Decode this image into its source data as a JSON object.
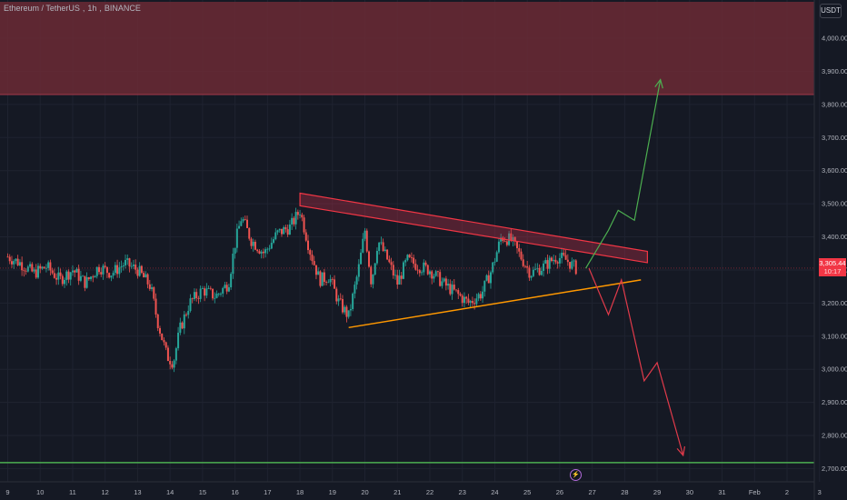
{
  "header": {
    "symbol": "Ethereum / TetherUS",
    "interval": "1h",
    "exchange": "BINANCE",
    "currency": "USDT"
  },
  "price_tag": {
    "price": "3,305.44",
    "countdown": "10:17"
  },
  "colors": {
    "background": "#151924",
    "bull": "#26a69a",
    "bear": "#ef5350",
    "resistance_zone": "#6b2a35",
    "triangle_top": "#f23645",
    "triangle_bottom": "#ff9800",
    "support_line": "#4caf50",
    "bull_arrow": "#4caf50",
    "bear_arrow": "#e03a4a",
    "grid": "#1f2330"
  },
  "chart_data": {
    "type": "candlestick",
    "title": "",
    "ylim": [
      2660,
      4110
    ],
    "x_ticks": [
      "9",
      "10",
      "11",
      "12",
      "13",
      "14",
      "15",
      "16",
      "17",
      "18",
      "19",
      "20",
      "21",
      "22",
      "23",
      "24",
      "25",
      "26",
      "27",
      "28",
      "29",
      "30",
      "31",
      "Feb",
      "2",
      "3"
    ],
    "y_ticks": [
      "4,000.00",
      "3,900.00",
      "3,800.00",
      "3,700.00",
      "3,600.00",
      "3,500.00",
      "3,400.00",
      "3,300.00",
      "3,200.00",
      "3,100.00",
      "3,000.00",
      "2,900.00",
      "2,800.00",
      "2,700.00"
    ],
    "current_price": 3305.44,
    "price_path": [
      [
        9.0,
        3340
      ],
      [
        9.4,
        3320
      ],
      [
        9.8,
        3290
      ],
      [
        10.2,
        3310
      ],
      [
        10.6,
        3270
      ],
      [
        11.0,
        3300
      ],
      [
        11.4,
        3260
      ],
      [
        11.8,
        3310
      ],
      [
        12.2,
        3290
      ],
      [
        12.6,
        3320
      ],
      [
        13.0,
        3300
      ],
      [
        13.4,
        3250
      ],
      [
        13.6,
        3150
      ],
      [
        13.9,
        3040
      ],
      [
        14.1,
        3020
      ],
      [
        14.3,
        3120
      ],
      [
        14.6,
        3200
      ],
      [
        15.0,
        3240
      ],
      [
        15.4,
        3220
      ],
      [
        15.8,
        3260
      ],
      [
        16.0,
        3380
      ],
      [
        16.2,
        3460
      ],
      [
        16.5,
        3390
      ],
      [
        16.9,
        3350
      ],
      [
        17.3,
        3410
      ],
      [
        17.7,
        3430
      ],
      [
        18.0,
        3480
      ],
      [
        18.3,
        3360
      ],
      [
        18.6,
        3270
      ],
      [
        18.9,
        3280
      ],
      [
        19.2,
        3200
      ],
      [
        19.5,
        3160
      ],
      [
        19.8,
        3300
      ],
      [
        20.0,
        3420
      ],
      [
        20.2,
        3260
      ],
      [
        20.4,
        3390
      ],
      [
        20.7,
        3330
      ],
      [
        21.0,
        3260
      ],
      [
        21.3,
        3330
      ],
      [
        21.7,
        3310
      ],
      [
        22.0,
        3300
      ],
      [
        22.4,
        3260
      ],
      [
        22.8,
        3230
      ],
      [
        23.2,
        3200
      ],
      [
        23.6,
        3230
      ],
      [
        23.9,
        3300
      ],
      [
        24.2,
        3400
      ],
      [
        24.5,
        3390
      ],
      [
        24.8,
        3340
      ],
      [
        25.1,
        3290
      ],
      [
        25.5,
        3310
      ],
      [
        25.9,
        3340
      ],
      [
        26.2,
        3330
      ],
      [
        26.5,
        3305
      ]
    ],
    "resistance_zone": {
      "y_low": 3830,
      "y_high": 4110
    },
    "triangle_upper_band": {
      "x": [
        18.0,
        28.7
      ],
      "y_top": [
        3532,
        3356
      ],
      "y_bottom": [
        3494,
        3322
      ]
    },
    "triangle_lower_line": {
      "x": [
        19.5,
        28.5
      ],
      "y": [
        3126,
        3270
      ]
    },
    "support_level": 2718,
    "bull_scenario": {
      "x": [
        26.8,
        27.5,
        27.8,
        28.3,
        29.1
      ],
      "y": [
        3305,
        3420,
        3480,
        3450,
        3875
      ]
    },
    "bear_scenario": {
      "x": [
        26.9,
        27.5,
        27.9,
        28.6,
        29.0,
        29.8
      ],
      "y": [
        3305,
        3165,
        3270,
        2965,
        3020,
        2740
      ]
    }
  }
}
